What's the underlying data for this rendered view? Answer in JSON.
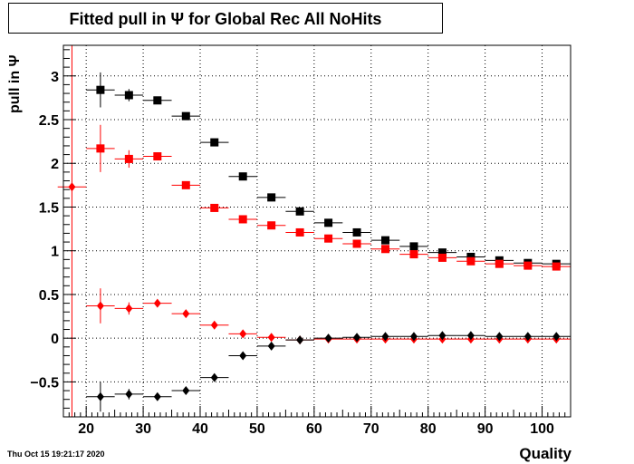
{
  "chart_data": {
    "type": "scatter",
    "title": "Fitted pull in  Ψ  for Global Rec All NoHits",
    "xlabel": "Quality",
    "ylabel": "pull in  Ψ",
    "timestamp": "Thu Oct 15 19:21:17 2020",
    "xlim": [
      16,
      105
    ],
    "ylim": [
      -0.9,
      3.35
    ],
    "x_ticks": [
      20,
      30,
      40,
      50,
      60,
      70,
      80,
      90,
      100
    ],
    "x_tick_labels": [
      "20",
      "30",
      "40",
      "50",
      "60",
      "70",
      "80",
      "90",
      "100"
    ],
    "y_ticks": [
      -0.5,
      0,
      0.5,
      1,
      1.5,
      2,
      2.5,
      3
    ],
    "y_tick_labels": [
      "−0.5",
      "0",
      "0.5",
      "1",
      "1.5",
      "2",
      "2.5",
      "3"
    ],
    "grid": true,
    "x_bin_halfwidth": 2.5,
    "reference_line_x": 17.5,
    "series": [
      {
        "marker": "square",
        "color": "#000000",
        "points": [
          {
            "x": 22.5,
            "y": 2.84,
            "err": 0.2
          },
          {
            "x": 27.5,
            "y": 2.78,
            "err": 0.07
          },
          {
            "x": 32.5,
            "y": 2.72,
            "err": 0.03
          },
          {
            "x": 37.5,
            "y": 2.54,
            "err": 0.02
          },
          {
            "x": 42.5,
            "y": 2.24,
            "err": 0.02
          },
          {
            "x": 47.5,
            "y": 1.85,
            "err": 0.02
          },
          {
            "x": 52.5,
            "y": 1.61,
            "err": 0.02
          },
          {
            "x": 57.5,
            "y": 1.45,
            "err": 0.02
          },
          {
            "x": 62.5,
            "y": 1.32,
            "err": 0.02
          },
          {
            "x": 67.5,
            "y": 1.21,
            "err": 0.02
          },
          {
            "x": 72.5,
            "y": 1.12,
            "err": 0.02
          },
          {
            "x": 77.5,
            "y": 1.05,
            "err": 0.02
          },
          {
            "x": 82.5,
            "y": 0.98,
            "err": 0.02
          },
          {
            "x": 87.5,
            "y": 0.93,
            "err": 0.02
          },
          {
            "x": 92.5,
            "y": 0.89,
            "err": 0.02
          },
          {
            "x": 97.5,
            "y": 0.86,
            "err": 0.02
          },
          {
            "x": 102.5,
            "y": 0.85,
            "err": 0.02
          }
        ]
      },
      {
        "marker": "square",
        "color": "#ff0000",
        "points": [
          {
            "x": 22.5,
            "y": 2.17,
            "err": 0.27
          },
          {
            "x": 27.5,
            "y": 2.05,
            "err": 0.1
          },
          {
            "x": 32.5,
            "y": 2.08,
            "err": 0.04
          },
          {
            "x": 37.5,
            "y": 1.75,
            "err": 0.02
          },
          {
            "x": 42.5,
            "y": 1.49,
            "err": 0.02
          },
          {
            "x": 47.5,
            "y": 1.36,
            "err": 0.02
          },
          {
            "x": 52.5,
            "y": 1.29,
            "err": 0.02
          },
          {
            "x": 57.5,
            "y": 1.21,
            "err": 0.02
          },
          {
            "x": 62.5,
            "y": 1.14,
            "err": 0.02
          },
          {
            "x": 67.5,
            "y": 1.08,
            "err": 0.02
          },
          {
            "x": 72.5,
            "y": 1.02,
            "err": 0.02
          },
          {
            "x": 77.5,
            "y": 0.96,
            "err": 0.02
          },
          {
            "x": 82.5,
            "y": 0.92,
            "err": 0.02
          },
          {
            "x": 87.5,
            "y": 0.88,
            "err": 0.02
          },
          {
            "x": 92.5,
            "y": 0.85,
            "err": 0.02
          },
          {
            "x": 97.5,
            "y": 0.83,
            "err": 0.02
          },
          {
            "x": 102.5,
            "y": 0.82,
            "err": 0.02
          }
        ]
      },
      {
        "marker": "diamond",
        "color": "#ff0000",
        "points": [
          {
            "x": 17.5,
            "y": 1.73,
            "err": 0.0
          },
          {
            "x": 22.5,
            "y": 0.37,
            "err": 0.2
          },
          {
            "x": 27.5,
            "y": 0.34,
            "err": 0.07
          },
          {
            "x": 32.5,
            "y": 0.4,
            "err": 0.03
          },
          {
            "x": 37.5,
            "y": 0.28,
            "err": 0.02
          },
          {
            "x": 42.5,
            "y": 0.15,
            "err": 0.02
          },
          {
            "x": 47.5,
            "y": 0.05,
            "err": 0.02
          },
          {
            "x": 52.5,
            "y": 0.01,
            "err": 0.02
          },
          {
            "x": 57.5,
            "y": -0.02,
            "err": 0.02
          },
          {
            "x": 62.5,
            "y": -0.01,
            "err": 0.02
          },
          {
            "x": 67.5,
            "y": -0.01,
            "err": 0.02
          },
          {
            "x": 72.5,
            "y": -0.01,
            "err": 0.02
          },
          {
            "x": 77.5,
            "y": -0.01,
            "err": 0.02
          },
          {
            "x": 82.5,
            "y": -0.01,
            "err": 0.02
          },
          {
            "x": 87.5,
            "y": -0.01,
            "err": 0.02
          },
          {
            "x": 92.5,
            "y": -0.01,
            "err": 0.02
          },
          {
            "x": 97.5,
            "y": -0.01,
            "err": 0.02
          },
          {
            "x": 102.5,
            "y": -0.01,
            "err": 0.02
          }
        ]
      },
      {
        "marker": "diamond",
        "color": "#000000",
        "points": [
          {
            "x": 22.5,
            "y": -0.67,
            "err": 0.17
          },
          {
            "x": 27.5,
            "y": -0.64,
            "err": 0.06
          },
          {
            "x": 32.5,
            "y": -0.67,
            "err": 0.03
          },
          {
            "x": 37.5,
            "y": -0.6,
            "err": 0.02
          },
          {
            "x": 42.5,
            "y": -0.45,
            "err": 0.02
          },
          {
            "x": 47.5,
            "y": -0.2,
            "err": 0.02
          },
          {
            "x": 52.5,
            "y": -0.09,
            "err": 0.02
          },
          {
            "x": 57.5,
            "y": -0.02,
            "err": 0.02
          },
          {
            "x": 62.5,
            "y": 0.0,
            "err": 0.02
          },
          {
            "x": 67.5,
            "y": 0.01,
            "err": 0.02
          },
          {
            "x": 72.5,
            "y": 0.02,
            "err": 0.02
          },
          {
            "x": 77.5,
            "y": 0.02,
            "err": 0.02
          },
          {
            "x": 82.5,
            "y": 0.03,
            "err": 0.02
          },
          {
            "x": 87.5,
            "y": 0.03,
            "err": 0.02
          },
          {
            "x": 92.5,
            "y": 0.02,
            "err": 0.02
          },
          {
            "x": 97.5,
            "y": 0.02,
            "err": 0.02
          },
          {
            "x": 102.5,
            "y": 0.02,
            "err": 0.02
          }
        ]
      }
    ]
  }
}
